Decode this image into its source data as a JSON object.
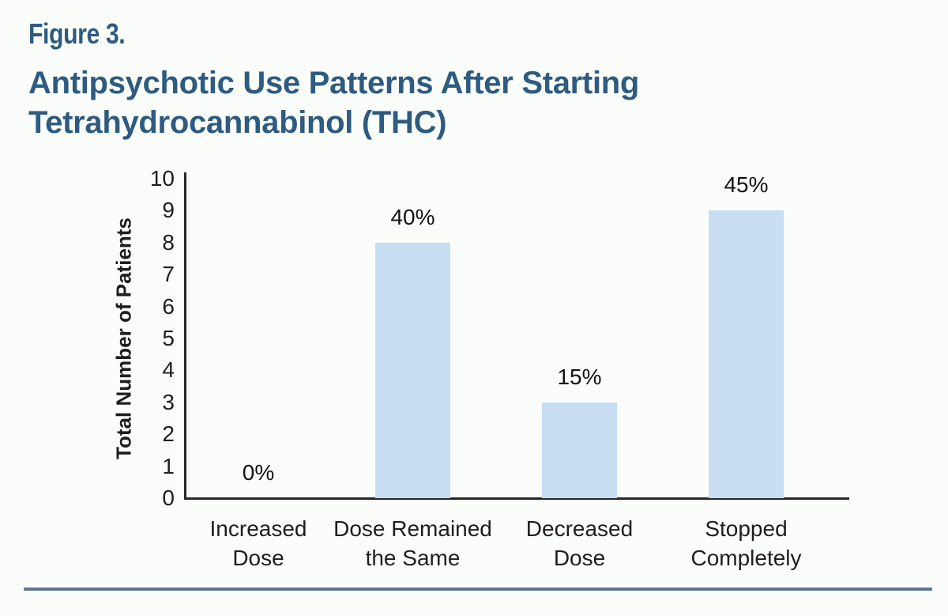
{
  "page": {
    "figure_label": "Figure 3.",
    "title_line1": "Antipsychotic Use Patterns After Starting",
    "title_line2": "Tetrahydrocannabinol (THC)"
  },
  "chart_data": {
    "type": "bar",
    "title": "Antipsychotic Use Patterns After Starting Tetrahydrocannabinol (THC)",
    "xlabel": "",
    "ylabel": "Total Number of Patients",
    "ylim": [
      0,
      10
    ],
    "ytick_values": [
      10,
      9,
      8,
      7,
      6,
      5,
      4,
      3,
      2,
      1,
      0
    ],
    "categories": [
      "Increased Dose",
      "Dose Remained the Same",
      "Decreased Dose",
      "Stopped Completely"
    ],
    "category_lines": [
      [
        "Increased",
        "Dose"
      ],
      [
        "Dose Remained",
        "the Same"
      ],
      [
        "Decreased",
        "Dose"
      ],
      [
        "Stopped",
        "Completely"
      ]
    ],
    "values": [
      0,
      8,
      3,
      9
    ],
    "bar_labels": [
      "0%",
      "40%",
      "15%",
      "45%"
    ],
    "grid": false,
    "legend": false,
    "bar_color": "#c6ddf2",
    "axis_color": "#272727"
  },
  "colors": {
    "title_blue": "#2e5b80",
    "bar_fill": "#c6ddf2",
    "bottom_rule": "#5d7895",
    "background": "#fbfdfa",
    "text": "#1e1e1e"
  }
}
